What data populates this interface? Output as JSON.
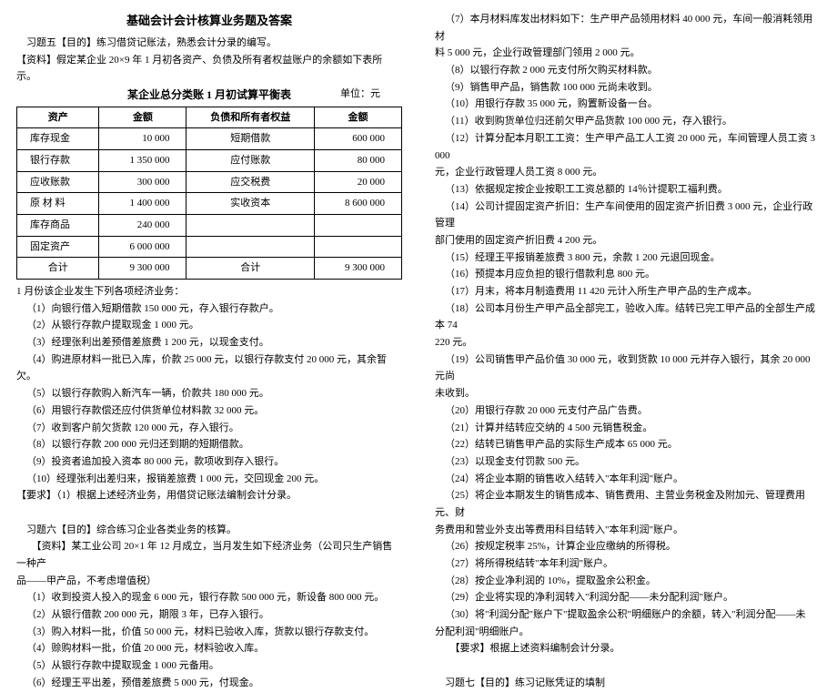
{
  "doc_title": "基础会计会计核算业务题及答案",
  "ex5_intro": "习题五【目的】练习借贷记账法，熟悉会计分录的编写。",
  "ex5_material": "【资料】假定某企业 20×9 年 1 月初各资产、负债及所有者权益账户的余额如下表所示。",
  "table_caption_main": "某企业总分类账 1 月初试算平衡表",
  "table_unit": "单位：元",
  "table_head": {
    "c1": "资产",
    "c2": "金额",
    "c3": "负债和所有者权益",
    "c4": "金额"
  },
  "rows": [
    {
      "a": "库存现金",
      "av": "10 000",
      "l": "短期借款",
      "lv": "600 000"
    },
    {
      "a": "银行存款",
      "av": "1 350 000",
      "l": "应付账款",
      "lv": "80 000"
    },
    {
      "a": "应收账款",
      "av": "300 000",
      "l": "应交税费",
      "lv": "20 000"
    },
    {
      "a": "原  材  料",
      "av": "1 400 000",
      "l": "实收资本",
      "lv": "8 600 000"
    },
    {
      "a": "库存商品",
      "av": "240 000",
      "l": "",
      "lv": ""
    },
    {
      "a": "固定资产",
      "av": "6 000 000",
      "l": "",
      "lv": ""
    }
  ],
  "total_row": {
    "a": "合计",
    "av": "9 300 000",
    "l": "合计",
    "lv": "9 300 000"
  },
  "ex5_lead": "1 月份该企业发生下列各项经济业务：",
  "ex5_items": [
    "（1）向银行借入短期借款 150 000 元，存入银行存款户。",
    "（2）从银行存款户提取现金 1 000 元。",
    "（3）经理张利出差预借差旅费 1 200 元，以现金支付。",
    "（4）购进原材料一批已入库，价款 25 000 元，以银行存款支付 20 000 元，其余暂欠。",
    "（5）以银行存款购入新汽车一辆，价款共 180 000 元。",
    "（6）用银行存款偿还应付供货单位材料款 32 000 元。",
    "（7）收到客户前欠货款 120 000 元，存入银行。",
    "（8）以银行存款 200 000 元归还到期的短期借款。",
    "（9）投资者追加投入资本 80 000 元，款项收到存入银行。",
    "（10）经理张利出差归来，报销差旅费 1 000 元，交回现金 200 元。"
  ],
  "ex5_req": "【要求】（1）根据上述经济业务，用借贷记账法编制会计分录。",
  "blank1": "　",
  "ex6_intro": "习题六【目的】综合练习企业各类业务的核算。",
  "ex6_mat1": "【资料】某工业公司 20×1 年 12 月成立，当月发生如下经济业务（公司只生产销售一种产",
  "ex6_mat2": "品——甲产品，不考虑增值税）",
  "ex6_items_a": [
    "（1）收到投资人投入的现金 6 000 元，银行存款 500 000 元，新设备 800 000 元。",
    "（2）从银行借款 200 000 元，期限 3 年，已存入银行。",
    "（3）购入材料一批，价值 50 000 元，材料已验收入库，货款以银行存款支付。",
    "（4）赊购材料一批，价值 20 000 元，材料验收入库。",
    "（5）从银行存款中提取现金 1 000 元备用。",
    "（6）经理王平出差，预借差旅费 5 000 元，付现金。"
  ],
  "ex6_items_b": [
    "（7）本月材料库发出材料如下：生产甲产品领用材料 40 000 元，车间一般消耗领用材",
    "料 5 000 元，企业行政管理部门领用 2 000 元。",
    "（8）以银行存款 2 000 元支付所欠购买材料款。",
    "（9）销售甲产品，销售款 100 000 元尚未收到。",
    "（10）用银行存款 35 000 元，购置新设备一台。",
    "（11）收到购货单位归还前欠甲产品货款 100 000 元，存入银行。",
    "（12）计算分配本月职工工资：生产甲产品工人工资 20 000 元，车间管理人员工资 3 000",
    "元，企业行政管理人员工资 8 000 元。",
    "（13）依据规定按企业按职工工资总额的 14％计提职工福利费。",
    "（14）公司计提固定资产折旧：生产车间使用的固定资产折旧费 3 000 元，企业行政管理",
    "部门使用的固定资产折旧费 4 200 元。",
    "（15）经理王平报销差旅费 3 800 元，余款 1 200 元退回现金。",
    "（16）预提本月应负担的银行借款利息 800 元。",
    "（17）月末，将本月制造费用 11 420 元计入所生产甲产品的生产成本。",
    "（18）公司本月份生产甲产品全部完工，验收入库。结转已完工甲产品的全部生产成本 74",
    "220 元。",
    "（19）公司销售甲产品价值 30 000 元，收到货款 10 000 元并存入银行，其余 20 000 元尚",
    "未收到。",
    "（20）用银行存款 20 000 元支付产品广告费。",
    "（21）计算并结转应交纳的 4 500 元销售税金。",
    "（22）结转已销售甲产品的实际生产成本 65 000 元。",
    "（23）以现金支付罚款 500 元。",
    "（24）将企业本期的销售收入结转入\"本年利润\"账户。",
    "（25）将企业本期发生的销售成本、销售费用、主营业务税金及附加元、管理费用元、财",
    "务费用和营业外支出等费用科目结转入\"本年利润\"账户。",
    "（26）按规定税率 25%，计算企业应缴纳的所得税。",
    "（27）将所得税结转\"本年利润\"账户。",
    "（28）按企业净利润的 10%，提取盈余公积金。",
    "（29）企业将实现的净利润转入\"利润分配——未分配利润\"账户。",
    "（30）将\"利润分配\"账户下\"提取盈余公积\"明细账户的余额，转入\"利润分配——未",
    "分配利润\"明细账户。"
  ],
  "ex6_req": "【要求】根据上述资料编制会计分录。",
  "blank2": "　",
  "ex7_intro": "习题七【目的】练习记账凭证的填制"
}
